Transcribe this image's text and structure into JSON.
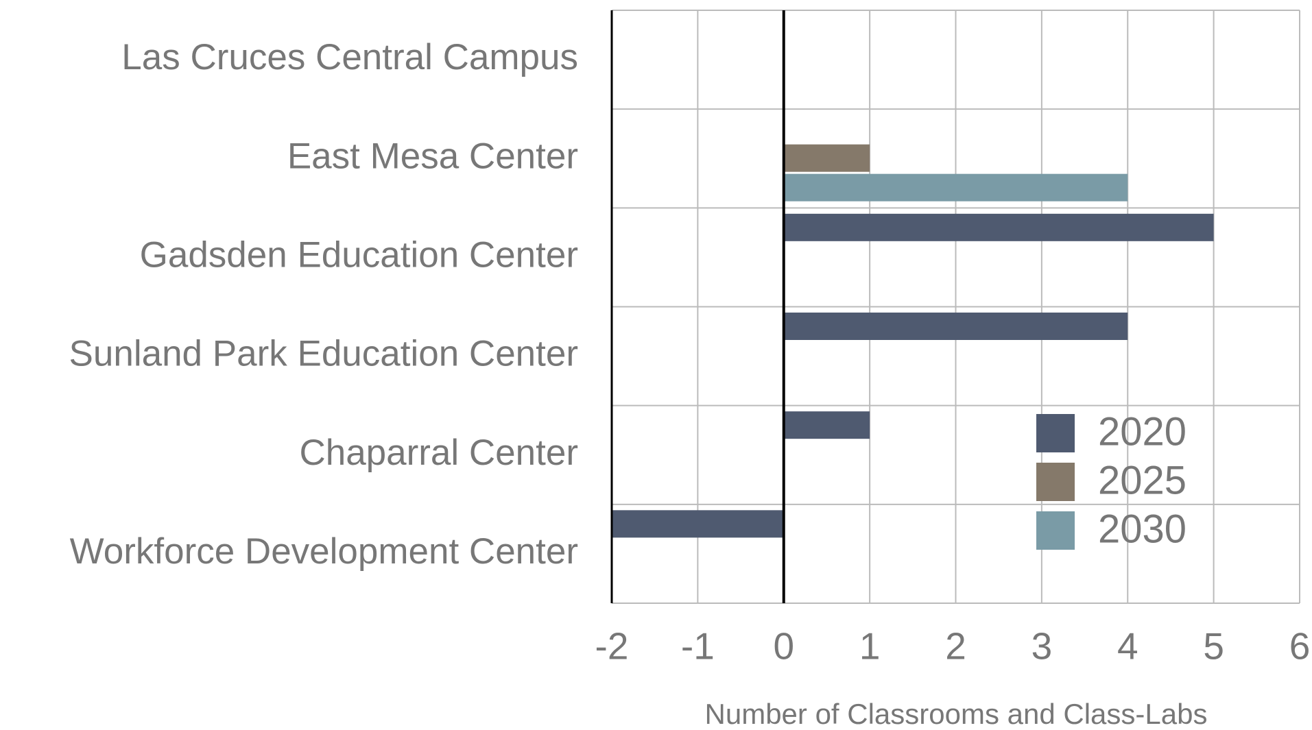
{
  "chart_data": {
    "type": "hbar",
    "categories": [
      "Las Cruces Central Campus",
      "East Mesa Center",
      "Gadsden Education Center",
      "Sunland Park Education Center",
      "Chaparral Center",
      "Workforce Development Center"
    ],
    "series": [
      {
        "name": "2020",
        "color": "#4f5a70",
        "values": [
          0,
          0,
          5,
          4,
          1,
          -2
        ]
      },
      {
        "name": "2025",
        "color": "#85796a",
        "values": [
          0,
          1,
          0,
          0,
          0,
          0
        ]
      },
      {
        "name": "2030",
        "color": "#7a9ba6",
        "values": [
          0,
          4,
          0,
          0,
          0,
          0
        ]
      }
    ],
    "xlim": [
      -2,
      6
    ],
    "xticks": [
      -2,
      -1,
      0,
      1,
      2,
      3,
      4,
      5,
      6
    ],
    "xlabel": "Number of Classrooms and Class-Labs",
    "grid": true,
    "legend": "lower right"
  }
}
